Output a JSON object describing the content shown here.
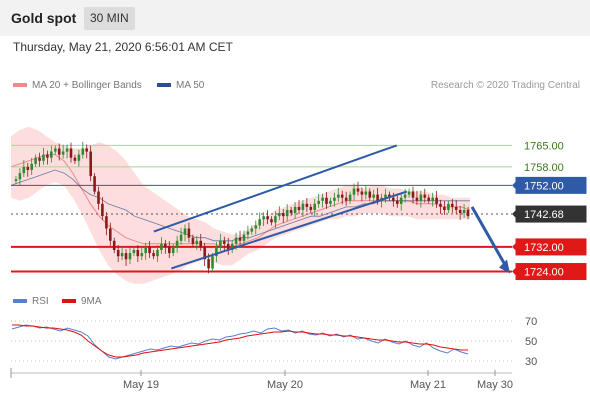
{
  "header": {
    "title": "Gold spot",
    "timeframe": "30 MIN"
  },
  "date_text": "Thursday, May 21, 2020 6:56:01 AM CET",
  "legend_main": [
    {
      "label": "MA 20 + Bollinger Bands",
      "color": "#f08a8a"
    },
    {
      "label": "MA 50",
      "color": "#2e4e8e"
    }
  ],
  "credit": "Research © 2020 Trading Central",
  "legend_rsi": [
    {
      "label": "RSI",
      "color": "#5b7fcf"
    },
    {
      "label": "9MA",
      "color": "#dd1111"
    }
  ],
  "colors": {
    "resistance": "#a8d88a",
    "support": "#e01818",
    "pivot": "#2f5aa8",
    "candle_up": "#2e8b2e",
    "candle_down": "#8b1a1a",
    "bollinger": "#fcd2d2",
    "ma50": "#2e4e8e"
  },
  "chart_data": {
    "type": "candlestick",
    "price_ylim": [
      1718,
      1770
    ],
    "levels": [
      {
        "value": 1765.0,
        "label": "1765.00",
        "kind": "resistance"
      },
      {
        "value": 1758.0,
        "label": "1758.00",
        "kind": "resistance"
      },
      {
        "value": 1752.0,
        "label": "1752.00",
        "kind": "pivot"
      },
      {
        "value": 1742.68,
        "label": "1742.68",
        "kind": "last"
      },
      {
        "value": 1732.0,
        "label": "1732.00",
        "kind": "support"
      },
      {
        "value": 1724.0,
        "label": "1724.00",
        "kind": "support"
      }
    ],
    "x_ticks": [
      "May 19",
      "May 20",
      "May 21",
      "May 30"
    ],
    "closes": [
      1754,
      1756,
      1758,
      1757,
      1759,
      1761,
      1760,
      1762,
      1761,
      1763,
      1764,
      1762,
      1763,
      1764,
      1761,
      1760,
      1762,
      1764,
      1763,
      1755,
      1750,
      1746,
      1742,
      1738,
      1734,
      1731,
      1729,
      1730,
      1728,
      1730,
      1731,
      1729,
      1730,
      1732,
      1730,
      1729,
      1731,
      1733,
      1732,
      1730,
      1732,
      1734,
      1736,
      1738,
      1735,
      1733,
      1734,
      1732,
      1728,
      1725,
      1729,
      1732,
      1734,
      1733,
      1731,
      1733,
      1735,
      1734,
      1736,
      1737,
      1738,
      1739,
      1741,
      1742,
      1741,
      1740,
      1742,
      1743,
      1742,
      1744,
      1743,
      1745,
      1744,
      1746,
      1745,
      1744,
      1746,
      1747,
      1748,
      1746,
      1747,
      1748,
      1749,
      1748,
      1747,
      1749,
      1751,
      1750,
      1749,
      1750,
      1748,
      1749,
      1747,
      1748,
      1749,
      1748,
      1747,
      1746,
      1748,
      1749,
      1750,
      1748,
      1747,
      1749,
      1748,
      1747,
      1748,
      1746,
      1745,
      1744,
      1746,
      1745,
      1744,
      1743,
      1744,
      1742
    ],
    "bb_upper": [
      1768,
      1770,
      1771,
      1770,
      1768,
      1766,
      1765,
      1764,
      1764,
      1765,
      1766,
      1765,
      1763,
      1760,
      1756,
      1752,
      1750,
      1748,
      1746,
      1744,
      1742,
      1741,
      1740,
      1738,
      1737,
      1736,
      1736,
      1738,
      1740,
      1742,
      1744,
      1745,
      1746,
      1747,
      1748,
      1749,
      1750,
      1751,
      1752,
      1752,
      1751,
      1752,
      1752,
      1751,
      1751,
      1750,
      1750,
      1750,
      1749,
      1749,
      1748,
      1748,
      1748
    ],
    "bb_lower": [
      1748,
      1747,
      1748,
      1750,
      1752,
      1753,
      1752,
      1748,
      1743,
      1737,
      1731,
      1726,
      1723,
      1721,
      1720,
      1720,
      1721,
      1722,
      1723,
      1724,
      1726,
      1727,
      1728,
      1727,
      1726,
      1726,
      1728,
      1730,
      1731,
      1733,
      1735,
      1736,
      1737,
      1738,
      1739,
      1740,
      1741,
      1741,
      1742,
      1742,
      1743,
      1743,
      1743,
      1742,
      1742,
      1742,
      1741,
      1741,
      1741,
      1741,
      1741,
      1741,
      1741
    ],
    "ma20": [
      1758,
      1759,
      1760,
      1761,
      1762,
      1762,
      1760,
      1756,
      1751,
      1746,
      1742,
      1739,
      1737,
      1735,
      1734,
      1733,
      1733,
      1733,
      1733,
      1733,
      1733,
      1733,
      1733,
      1733,
      1732,
      1732,
      1733,
      1734,
      1735,
      1737,
      1739,
      1740,
      1741,
      1742,
      1743,
      1744,
      1745,
      1746,
      1747,
      1747,
      1747,
      1747,
      1747,
      1747,
      1747,
      1747,
      1746,
      1746,
      1746,
      1745,
      1745,
      1745,
      1744
    ],
    "ma50": [
      1752,
      1753,
      1754,
      1755,
      1756,
      1757,
      1756,
      1754,
      1751,
      1749,
      1748,
      1746,
      1745,
      1744,
      1742,
      1741,
      1740,
      1739,
      1738,
      1737,
      1736,
      1735,
      1735,
      1734,
      1734,
      1734,
      1735,
      1735,
      1736,
      1737,
      1738,
      1739,
      1740,
      1741,
      1742,
      1742,
      1743,
      1744,
      1745,
      1745,
      1746,
      1746,
      1747,
      1747,
      1747,
      1747,
      1747,
      1747,
      1747,
      1747,
      1747,
      1747,
      1747
    ],
    "trendlines": [
      {
        "from": [
          0.285,
          1737
        ],
        "to": [
          0.77,
          1765
        ]
      },
      {
        "from": [
          0.32,
          1725
        ],
        "to": [
          0.79,
          1750
        ]
      }
    ],
    "forecast_arrow": {
      "from": 1745,
      "to": 1724
    },
    "rsi_ylim": [
      25,
      75
    ],
    "rsi_ticks": [
      70,
      50,
      30
    ],
    "rsi": [
      62,
      64,
      66,
      65,
      63,
      64,
      62,
      60,
      63,
      61,
      59,
      55,
      46,
      40,
      34,
      32,
      34,
      36,
      38,
      40,
      42,
      41,
      43,
      45,
      44,
      46,
      48,
      47,
      50,
      52,
      51,
      54,
      55,
      57,
      58,
      60,
      58,
      62,
      63,
      60,
      61,
      58,
      60,
      57,
      56,
      58,
      55,
      57,
      54,
      56,
      52,
      53,
      50,
      48,
      52,
      49,
      47,
      50,
      46,
      44,
      48,
      43,
      40,
      38,
      42,
      39,
      37
    ],
    "rsi_ma": [
      66,
      66,
      65,
      65,
      64,
      63,
      63,
      62,
      61,
      59,
      56,
      50,
      45,
      40,
      36,
      34,
      34,
      35,
      36,
      38,
      39,
      40,
      41,
      42,
      43,
      44,
      45,
      46,
      47,
      48,
      49,
      51,
      52,
      53,
      55,
      56,
      57,
      58,
      59,
      59,
      60,
      59,
      59,
      58,
      57,
      57,
      56,
      56,
      55,
      55,
      54,
      53,
      52,
      51,
      51,
      50,
      49,
      49,
      48,
      47,
      47,
      46,
      44,
      43,
      42,
      41,
      41
    ]
  }
}
